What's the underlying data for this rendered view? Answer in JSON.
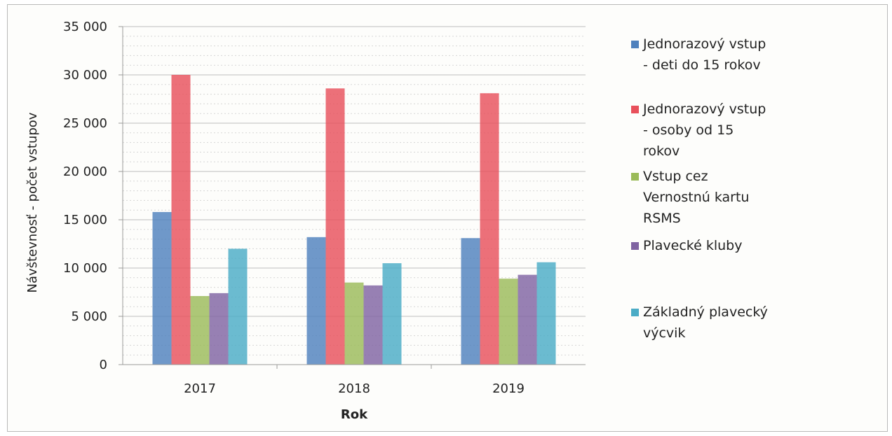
{
  "chart_data": {
    "type": "bar",
    "title": "",
    "xlabel": "Rok",
    "ylabel": "Návštevnosť - počet vstupov",
    "categories": [
      "2017",
      "2018",
      "2019"
    ],
    "ylim": [
      0,
      35000
    ],
    "yticks": [
      0,
      5000,
      10000,
      15000,
      20000,
      25000,
      30000,
      35000
    ],
    "ytick_labels": [
      "0",
      "5 000",
      "10 000",
      "15 000",
      "20 000",
      "25 000",
      "30 000",
      "35 000"
    ],
    "grid": true,
    "legend_position": "right",
    "series": [
      {
        "name": "Jednorazový vstup - deti do 15 rokov",
        "legend_lines": [
          "Jednorazový vstup",
          "- deti do 15 rokov"
        ],
        "color": "#4f81bd",
        "values": [
          15800,
          13200,
          13100
        ]
      },
      {
        "name": "Jednorazový vstup - osoby od 15 rokov",
        "legend_lines": [
          "Jednorazový vstup",
          "- osoby od 15",
          "rokov"
        ],
        "color": "#e8505b",
        "values": [
          30000,
          28600,
          28100
        ]
      },
      {
        "name": "Vstup cez Vernostnú kartu RSMS",
        "legend_lines": [
          "Vstup cez",
          "Vernostnú kartu",
          "RSMS"
        ],
        "color": "#9bbb59",
        "values": [
          7100,
          8500,
          8900
        ]
      },
      {
        "name": "Plavecké kluby",
        "legend_lines": [
          "Plavecké kluby"
        ],
        "color": "#8064a2",
        "values": [
          7400,
          8200,
          9300
        ]
      },
      {
        "name": "Základný plavecký výcvik",
        "legend_lines": [
          "Základný plavecký",
          "výcvik"
        ],
        "color": "#4bacc6",
        "values": [
          12000,
          10500,
          10600
        ]
      }
    ]
  }
}
